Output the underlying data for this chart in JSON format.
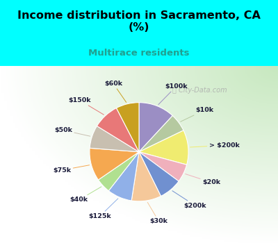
{
  "title": "Income distribution in Sacramento, CA\n(%)",
  "subtitle": "Multirace residents",
  "background_color": "#00FFFF",
  "chart_bg_color": "#cce8cc",
  "watermark": "City-Data.com",
  "slices": [
    {
      "label": "$100k",
      "value": 11.0,
      "color": "#9b8ec4"
    },
    {
      "label": "$10k",
      "value": 5.5,
      "color": "#b5c9a0"
    },
    {
      "label": "> $200k",
      "value": 10.5,
      "color": "#f0ec70"
    },
    {
      "label": "$20k",
      "value": 5.5,
      "color": "#f0b0bc"
    },
    {
      "label": "$200k",
      "value": 7.0,
      "color": "#7090d0"
    },
    {
      "label": "$30k",
      "value": 9.0,
      "color": "#f5c89a"
    },
    {
      "label": "$125k",
      "value": 7.5,
      "color": "#90b0e8"
    },
    {
      "label": "$40k",
      "value": 4.5,
      "color": "#b0e090"
    },
    {
      "label": "$75k",
      "value": 10.0,
      "color": "#f5a850"
    },
    {
      "label": "$50k",
      "value": 7.0,
      "color": "#c8bfb0"
    },
    {
      "label": "$150k",
      "value": 8.0,
      "color": "#e87878"
    },
    {
      "label": "$60k",
      "value": 7.0,
      "color": "#c8a020"
    }
  ]
}
